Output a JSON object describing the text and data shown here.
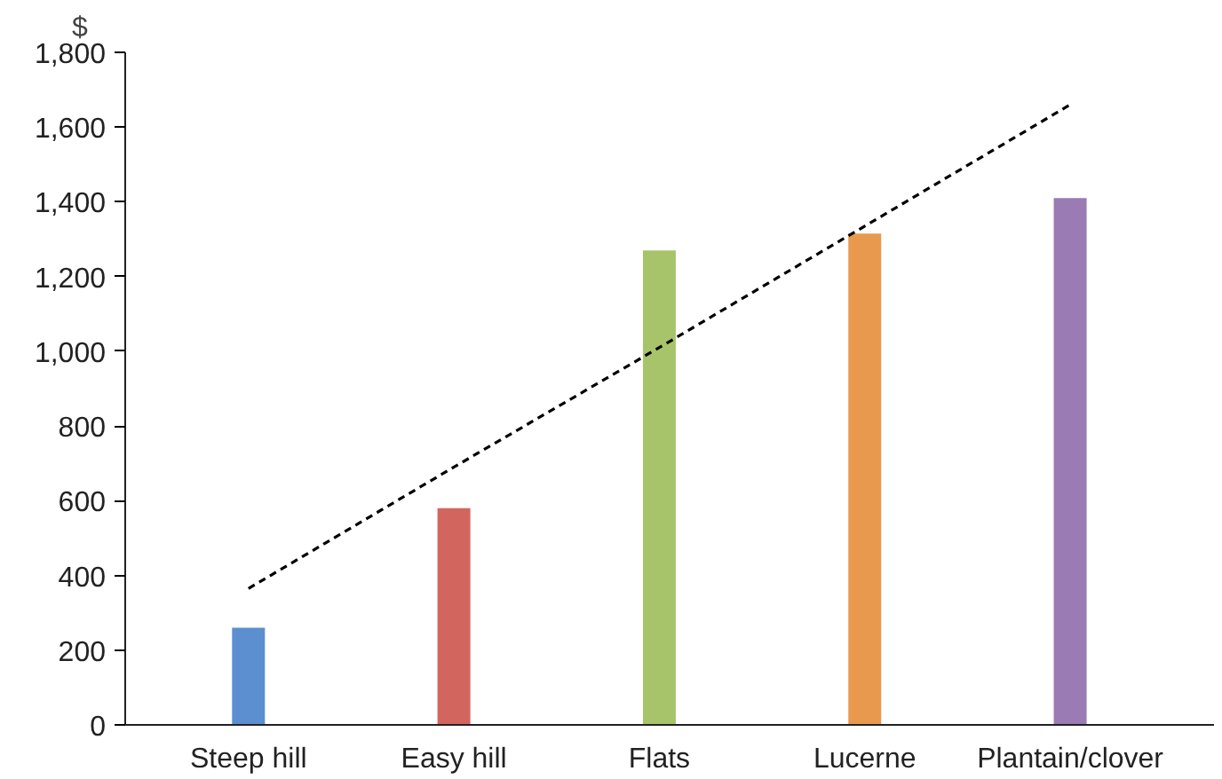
{
  "chart_data": {
    "type": "bar",
    "ylabel": "$",
    "categories": [
      "Steep hill",
      "Easy hill",
      "Flats",
      "Lucerne",
      "Plantain/clover"
    ],
    "values": [
      260,
      580,
      1270,
      1315,
      1410
    ],
    "colors": [
      "#5b8fcf",
      "#d2665e",
      "#a8c46a",
      "#e8994e",
      "#9a7bb3"
    ],
    "ylim": [
      0,
      1800
    ],
    "yticks": [
      0,
      {
        "value": 200,
        "label": "200"
      },
      {
        "value": 400,
        "label": "400"
      },
      {
        "value": 600,
        "label": "600"
      },
      {
        "value": 800,
        "label": "800"
      },
      {
        "value": 1000,
        "label": "1,000"
      },
      {
        "value": 1200,
        "label": "1,200"
      },
      {
        "value": 1400,
        "label": "1,400"
      },
      {
        "value": 1600,
        "label": "1,600"
      },
      {
        "value": 1800,
        "label": "1,800"
      }
    ],
    "grid": false,
    "series": [
      {
        "type": "line",
        "values": [
          365,
          690,
          1010,
          1335,
          1660
        ],
        "color": "#000000",
        "line_style": "dashed"
      }
    ]
  }
}
